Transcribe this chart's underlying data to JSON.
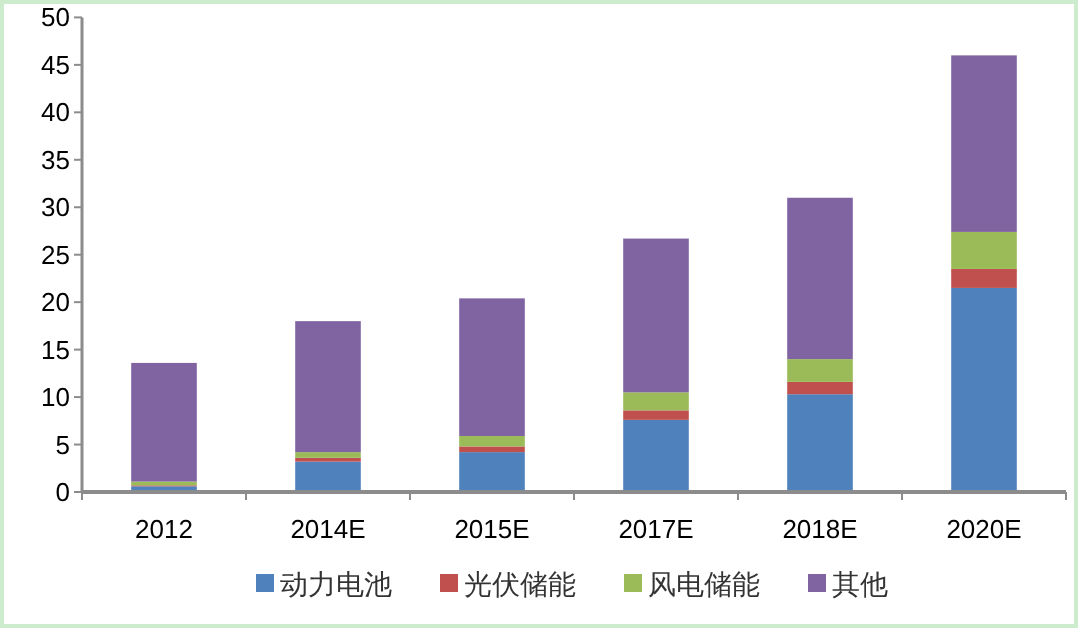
{
  "chart_data": {
    "type": "bar",
    "stacked": true,
    "categories": [
      "2012",
      "2014E",
      "2015E",
      "2017E",
      "2018E",
      "2020E"
    ],
    "series": [
      {
        "name": "动力电池",
        "color": "#4f81bd",
        "values": [
          0.6,
          3.2,
          4.2,
          7.6,
          10.3,
          21.5
        ]
      },
      {
        "name": "光伏储能",
        "color": "#c0504d",
        "values": [
          0.1,
          0.4,
          0.6,
          1.0,
          1.3,
          2.0
        ]
      },
      {
        "name": "风电储能",
        "color": "#9bbb59",
        "values": [
          0.4,
          0.6,
          1.1,
          1.9,
          2.4,
          3.9
        ]
      },
      {
        "name": "其他",
        "color": "#8064a2",
        "values": [
          12.5,
          13.8,
          14.5,
          16.2,
          17.0,
          18.6
        ]
      }
    ],
    "ylim": [
      0,
      50
    ],
    "yticks": [
      0,
      5,
      10,
      15,
      20,
      25,
      30,
      35,
      40,
      45,
      50
    ],
    "grid": false,
    "legend": "bottom"
  }
}
